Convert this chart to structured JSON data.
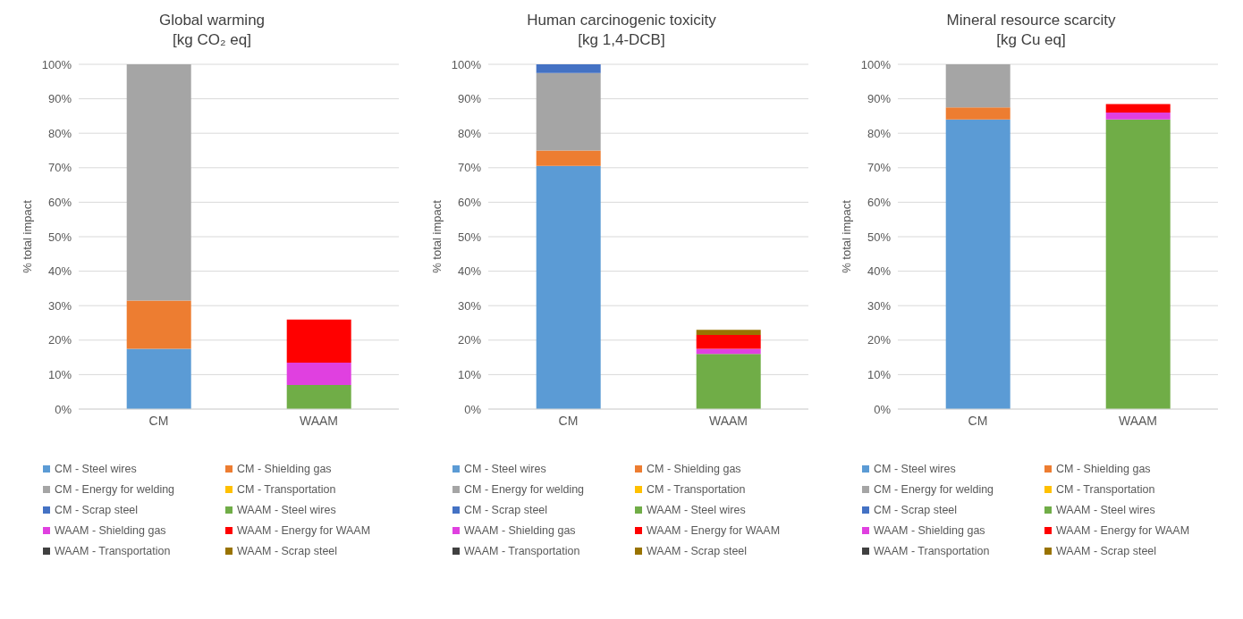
{
  "chart_data": [
    {
      "type": "bar",
      "stacked": true,
      "title": "Global warming",
      "subtitle": "[kg CO₂ eq]",
      "ylabel": "% total impact",
      "categories": [
        "CM",
        "WAAM"
      ],
      "ylim": [
        0,
        100
      ],
      "yticks": [
        {
          "value": 0,
          "label": "0%"
        },
        {
          "value": 10,
          "label": "10%"
        },
        {
          "value": 20,
          "label": "20%"
        },
        {
          "value": 30,
          "label": "30%"
        },
        {
          "value": 40,
          "label": "40%"
        },
        {
          "value": 50,
          "label": "50%"
        },
        {
          "value": 60,
          "label": "60%"
        },
        {
          "value": 70,
          "label": "70%"
        },
        {
          "value": 80,
          "label": "80%"
        },
        {
          "value": 90,
          "label": "90%"
        },
        {
          "value": 100,
          "label": "100%"
        }
      ],
      "grid": "y",
      "legend": "bottom",
      "series": [
        {
          "name": "CM - Steel wires",
          "color": "#5b9bd5",
          "values": [
            17.5,
            null
          ]
        },
        {
          "name": "CM - Shielding gas",
          "color": "#ed7d31",
          "values": [
            14,
            null
          ]
        },
        {
          "name": "CM - Energy for welding",
          "color": "#a5a5a5",
          "values": [
            68.5,
            null
          ]
        },
        {
          "name": "CM - Transportation",
          "color": "#ffc000",
          "values": [
            0,
            null
          ]
        },
        {
          "name": "CM - Scrap steel",
          "color": "#4472c4",
          "values": [
            0,
            null
          ]
        },
        {
          "name": "WAAM - Steel wires",
          "color": "#70ad47",
          "values": [
            null,
            7
          ]
        },
        {
          "name": "WAAM - Shielding gas",
          "color": "#e040e0",
          "values": [
            null,
            6.5
          ]
        },
        {
          "name": "WAAM - Energy for WAAM",
          "color": "#ff0000",
          "values": [
            null,
            12.5
          ]
        },
        {
          "name": "WAAM - Transportation",
          "color": "#404040",
          "values": [
            null,
            0
          ]
        },
        {
          "name": "WAAM - Scrap steel",
          "color": "#997300",
          "values": [
            null,
            0
          ]
        }
      ]
    },
    {
      "type": "bar",
      "stacked": true,
      "title": "Human carcinogenic toxicity",
      "subtitle": "[kg 1,4-DCB]",
      "ylabel": "% total impact",
      "categories": [
        "CM",
        "WAAM"
      ],
      "ylim": [
        0,
        100
      ],
      "yticks": [
        {
          "value": 0,
          "label": "0%"
        },
        {
          "value": 10,
          "label": "10%"
        },
        {
          "value": 20,
          "label": "20%"
        },
        {
          "value": 30,
          "label": "30%"
        },
        {
          "value": 40,
          "label": "40%"
        },
        {
          "value": 50,
          "label": "50%"
        },
        {
          "value": 60,
          "label": "60%"
        },
        {
          "value": 70,
          "label": "70%"
        },
        {
          "value": 80,
          "label": "80%"
        },
        {
          "value": 90,
          "label": "90%"
        },
        {
          "value": 100,
          "label": "100%"
        }
      ],
      "grid": "y",
      "legend": "bottom",
      "series": [
        {
          "name": "CM - Steel wires",
          "color": "#5b9bd5",
          "values": [
            70.5,
            null
          ]
        },
        {
          "name": "CM - Shielding gas",
          "color": "#ed7d31",
          "values": [
            4.5,
            null
          ]
        },
        {
          "name": "CM - Energy for welding",
          "color": "#a5a5a5",
          "values": [
            22.5,
            null
          ]
        },
        {
          "name": "CM - Transportation",
          "color": "#ffc000",
          "values": [
            0,
            null
          ]
        },
        {
          "name": "CM - Scrap steel",
          "color": "#4472c4",
          "values": [
            2.5,
            null
          ]
        },
        {
          "name": "WAAM - Steel wires",
          "color": "#70ad47",
          "values": [
            null,
            16
          ]
        },
        {
          "name": "WAAM - Shielding gas",
          "color": "#e040e0",
          "values": [
            null,
            1.5
          ]
        },
        {
          "name": "WAAM - Energy for WAAM",
          "color": "#ff0000",
          "values": [
            null,
            4
          ]
        },
        {
          "name": "WAAM - Transportation",
          "color": "#404040",
          "values": [
            null,
            0
          ]
        },
        {
          "name": "WAAM - Scrap steel",
          "color": "#997300",
          "values": [
            null,
            1.5
          ]
        }
      ]
    },
    {
      "type": "bar",
      "stacked": true,
      "title": "Mineral resource scarcity",
      "subtitle": "[kg Cu eq]",
      "ylabel": "% total impact",
      "categories": [
        "CM",
        "WAAM"
      ],
      "ylim": [
        0,
        100
      ],
      "yticks": [
        {
          "value": 0,
          "label": "0%"
        },
        {
          "value": 10,
          "label": "10%"
        },
        {
          "value": 20,
          "label": "20%"
        },
        {
          "value": 30,
          "label": "30%"
        },
        {
          "value": 40,
          "label": "40%"
        },
        {
          "value": 50,
          "label": "50%"
        },
        {
          "value": 60,
          "label": "60%"
        },
        {
          "value": 70,
          "label": "70%"
        },
        {
          "value": 80,
          "label": "80%"
        },
        {
          "value": 90,
          "label": "90%"
        },
        {
          "value": 100,
          "label": "100%"
        }
      ],
      "grid": "y",
      "legend": "bottom",
      "series": [
        {
          "name": "CM - Steel wires",
          "color": "#5b9bd5",
          "values": [
            84,
            null
          ]
        },
        {
          "name": "CM - Shielding gas",
          "color": "#ed7d31",
          "values": [
            3.5,
            null
          ]
        },
        {
          "name": "CM - Energy for welding",
          "color": "#a5a5a5",
          "values": [
            12.5,
            null
          ]
        },
        {
          "name": "CM - Transportation",
          "color": "#ffc000",
          "values": [
            0,
            null
          ]
        },
        {
          "name": "CM - Scrap steel",
          "color": "#4472c4",
          "values": [
            0,
            null
          ]
        },
        {
          "name": "WAAM - Steel wires",
          "color": "#70ad47",
          "values": [
            null,
            84
          ]
        },
        {
          "name": "WAAM - Shielding gas",
          "color": "#e040e0",
          "values": [
            null,
            2
          ]
        },
        {
          "name": "WAAM - Energy for WAAM",
          "color": "#ff0000",
          "values": [
            null,
            2.5
          ]
        },
        {
          "name": "WAAM - Transportation",
          "color": "#404040",
          "values": [
            null,
            0
          ]
        },
        {
          "name": "WAAM - Scrap steel",
          "color": "#997300",
          "values": [
            null,
            0
          ]
        }
      ]
    }
  ]
}
